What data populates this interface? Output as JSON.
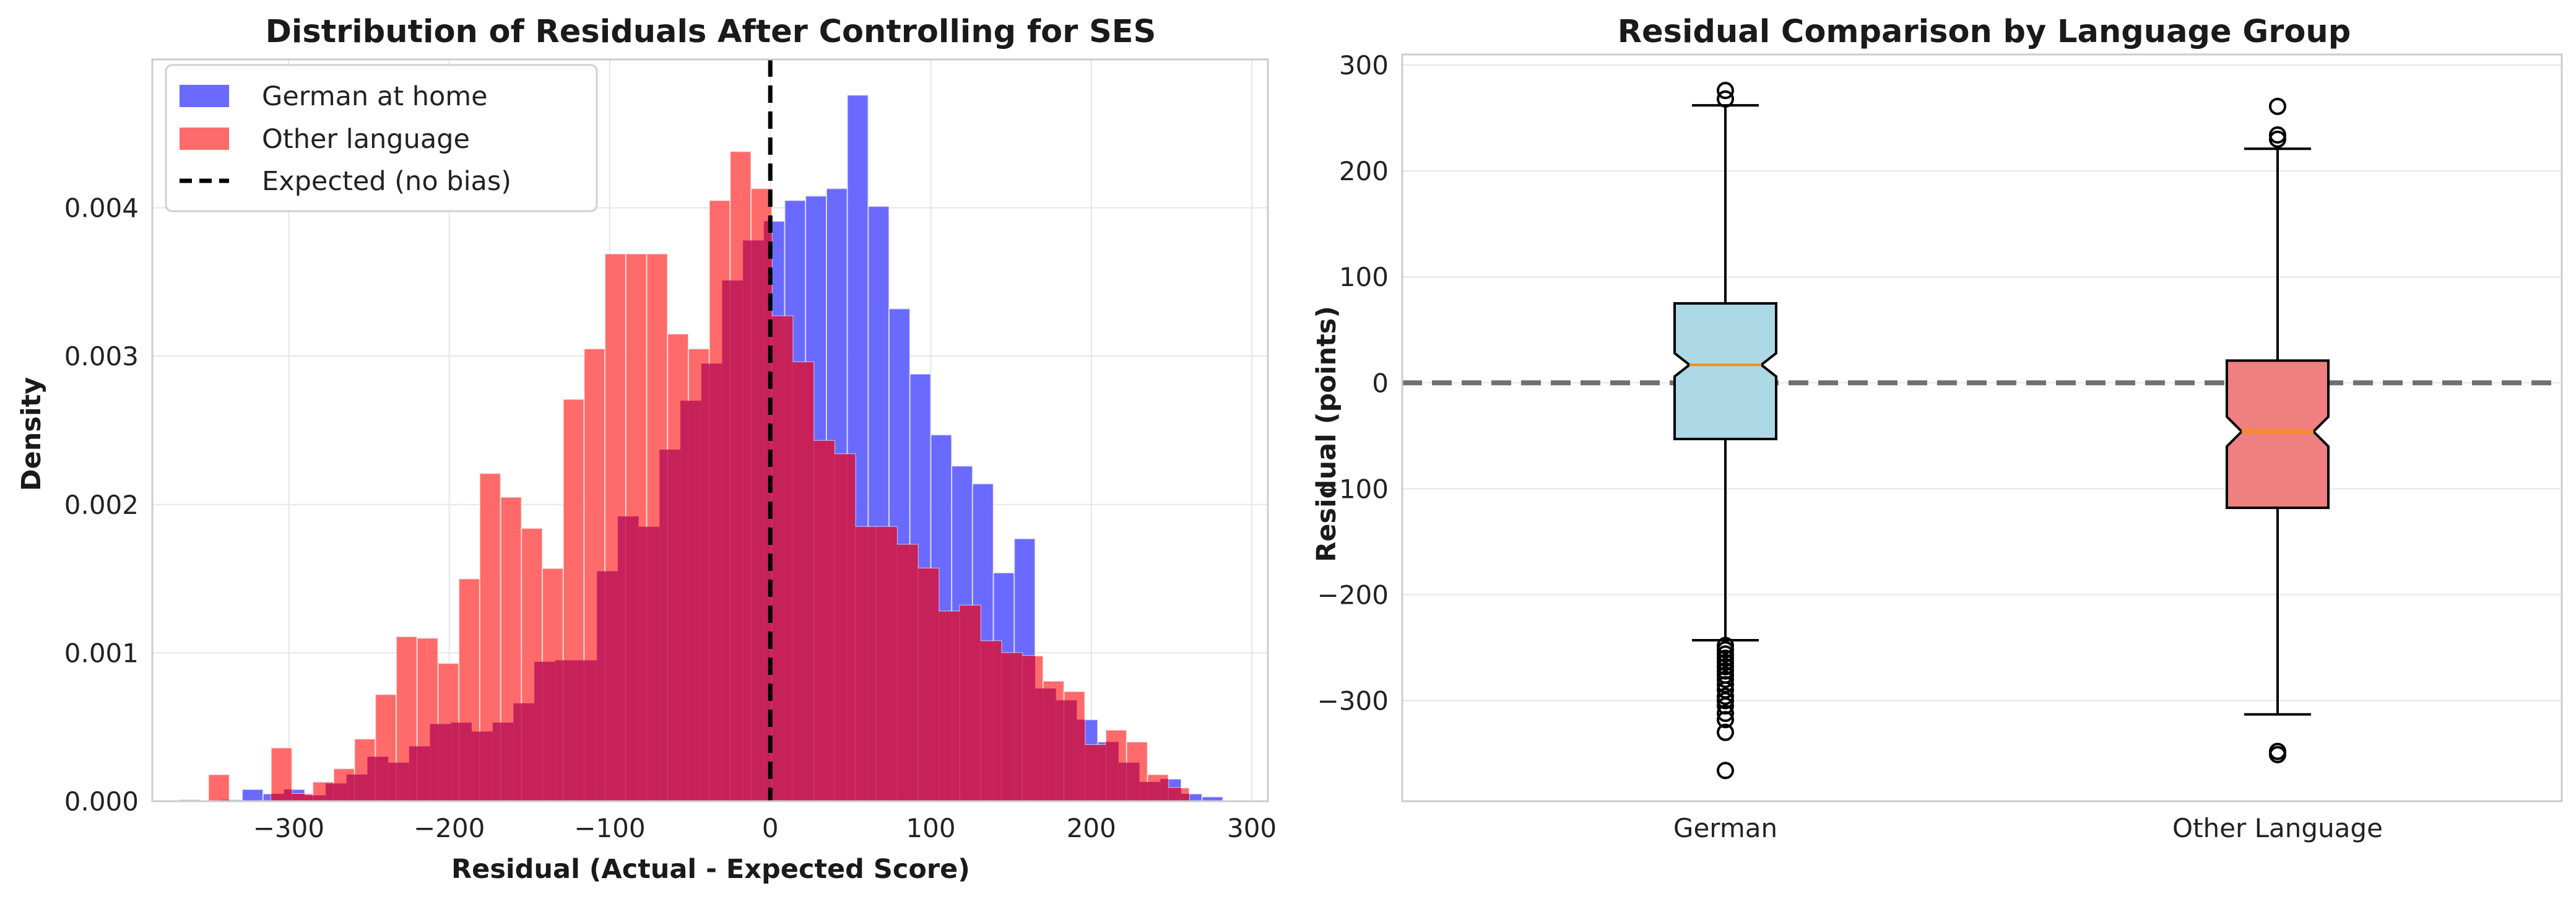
{
  "chart_data": [
    {
      "type": "histogram",
      "title": "Distribution of Residuals After Controlling for SES",
      "xlabel": "Residual (Actual - Expected Score)",
      "ylabel": "Density",
      "xlim": [
        -385,
        310
      ],
      "ylim": [
        0,
        0.005
      ],
      "xticks": [
        -300,
        -200,
        -100,
        0,
        100,
        200,
        300
      ],
      "yticks": [
        0.0,
        0.001,
        0.002,
        0.003,
        0.004
      ],
      "xtick_labels": [
        "−300",
        "−200",
        "−100",
        "0",
        "100",
        "200",
        "300"
      ],
      "ytick_labels": [
        "0.000",
        "0.001",
        "0.002",
        "0.003",
        "0.004"
      ],
      "grid": true,
      "legend": "top-left",
      "series": [
        {
          "name": "German at home",
          "color": "#5a5aff",
          "bins": [
            [
              -368,
              -355,
              1e-05
            ],
            [
              -355,
              -342,
              0.0
            ],
            [
              -342,
              -329,
              1e-05
            ],
            [
              -329,
              -316,
              8e-05
            ],
            [
              -316,
              -303,
              5e-05
            ],
            [
              -303,
              -290,
              8e-05
            ],
            [
              -290,
              -277,
              4e-05
            ],
            [
              -277,
              -264,
              0.00012
            ],
            [
              -264,
              -251,
              0.00018
            ],
            [
              -251,
              -238,
              0.0003
            ],
            [
              -238,
              -225,
              0.00026
            ],
            [
              -225,
              -212,
              0.00037
            ],
            [
              -212,
              -199,
              0.00052
            ],
            [
              -199,
              -186,
              0.00053
            ],
            [
              -186,
              -173,
              0.00047
            ],
            [
              -173,
              -160,
              0.00053
            ],
            [
              -160,
              -147,
              0.00066
            ],
            [
              -147,
              -134,
              0.00094
            ],
            [
              -134,
              -121,
              0.00095
            ],
            [
              -121,
              -108,
              0.00095
            ],
            [
              -108,
              -95,
              0.00155
            ],
            [
              -95,
              -82,
              0.00192
            ],
            [
              -82,
              -69,
              0.00185
            ],
            [
              -69,
              -56,
              0.00237
            ],
            [
              -56,
              -43,
              0.0027
            ],
            [
              -43,
              -30,
              0.00295
            ],
            [
              -30,
              -17,
              0.00351
            ],
            [
              -17,
              -4,
              0.00378
            ],
            [
              -4,
              9,
              0.00391
            ],
            [
              9,
              22,
              0.00405
            ],
            [
              22,
              35,
              0.00408
            ],
            [
              35,
              48,
              0.00413
            ],
            [
              48,
              61,
              0.00476
            ],
            [
              61,
              74,
              0.00401
            ],
            [
              74,
              87,
              0.00332
            ],
            [
              87,
              100,
              0.00288
            ],
            [
              100,
              113,
              0.00247
            ],
            [
              113,
              126,
              0.00226
            ],
            [
              126,
              139,
              0.00214
            ],
            [
              139,
              152,
              0.00154
            ],
            [
              152,
              165,
              0.00177
            ],
            [
              165,
              178,
              0.00076
            ],
            [
              178,
              191,
              0.00068
            ],
            [
              191,
              204,
              0.00055
            ],
            [
              204,
              217,
              0.0004
            ],
            [
              217,
              230,
              0.00026
            ],
            [
              230,
              243,
              0.00013
            ],
            [
              243,
              256,
              0.00015
            ],
            [
              256,
              269,
              5e-05
            ],
            [
              269,
              282,
              3e-05
            ]
          ]
        },
        {
          "name": "Other language",
          "color": "#ff5a5a",
          "bins": [
            [
              -350,
              -337,
              0.00018
            ],
            [
              -337,
              -324,
              0.0
            ],
            [
              -324,
              -311,
              0.0
            ],
            [
              -311,
              -298,
              0.00036
            ],
            [
              -298,
              -285,
              5e-05
            ],
            [
              -285,
              -272,
              0.00013
            ],
            [
              -272,
              -259,
              0.00022
            ],
            [
              -259,
              -246,
              0.00042
            ],
            [
              -246,
              -233,
              0.00072
            ],
            [
              -233,
              -220,
              0.00111
            ],
            [
              -220,
              -207,
              0.0011
            ],
            [
              -207,
              -194,
              0.00093
            ],
            [
              -194,
              -181,
              0.0015
            ],
            [
              -181,
              -168,
              0.00221
            ],
            [
              -168,
              -155,
              0.00205
            ],
            [
              -155,
              -142,
              0.00184
            ],
            [
              -142,
              -129,
              0.00157
            ],
            [
              -129,
              -116,
              0.00271
            ],
            [
              -116,
              -103,
              0.00305
            ],
            [
              -103,
              -90,
              0.00369
            ],
            [
              -90,
              -77,
              0.00369
            ],
            [
              -77,
              -64,
              0.00369
            ],
            [
              -64,
              -51,
              0.00315
            ],
            [
              -51,
              -38,
              0.00305
            ],
            [
              -38,
              -25,
              0.00405
            ],
            [
              -25,
              -12,
              0.00438
            ],
            [
              -12,
              1,
              0.00413
            ],
            [
              1,
              14,
              0.00327
            ],
            [
              14,
              27,
              0.00296
            ],
            [
              27,
              40,
              0.00243
            ],
            [
              40,
              53,
              0.00234
            ],
            [
              53,
              66,
              0.00185
            ],
            [
              66,
              79,
              0.00185
            ],
            [
              79,
              92,
              0.00173
            ],
            [
              92,
              105,
              0.00157
            ],
            [
              105,
              118,
              0.00128
            ],
            [
              118,
              131,
              0.00132
            ],
            [
              131,
              144,
              0.00108
            ],
            [
              144,
              157,
              0.001
            ],
            [
              157,
              170,
              0.00098
            ],
            [
              170,
              183,
              0.00081
            ],
            [
              183,
              196,
              0.00074
            ],
            [
              196,
              209,
              0.00038
            ],
            [
              209,
              222,
              0.00048
            ],
            [
              222,
              235,
              0.0004
            ],
            [
              235,
              248,
              0.00018
            ],
            [
              248,
              261,
              9e-05
            ]
          ]
        }
      ],
      "overlap_color": "#c41f5a",
      "reference_line": {
        "name": "Expected (no bias)",
        "x": 0,
        "color": "#000000"
      }
    },
    {
      "type": "boxplot",
      "title": "Residual Comparison by Language Group",
      "xlabel": "",
      "ylabel": "Residual (points)",
      "ylim": [
        -395,
        310
      ],
      "yticks": [
        -300,
        -200,
        -100,
        0,
        100,
        200,
        300
      ],
      "ytick_labels": [
        "−300",
        "−200",
        "−100",
        "0",
        "100",
        "200",
        "300"
      ],
      "grid": true,
      "reference_line": {
        "y": 0,
        "color": "#707070"
      },
      "groups": [
        {
          "label": "German",
          "color": "#add8e6",
          "median": 17,
          "q1": -53,
          "q3": 75,
          "notch_low": 6,
          "notch_high": 28,
          "whisker_low": -243,
          "whisker_high": 262,
          "outliers": [
            268,
            276,
            -248,
            -252,
            -256,
            -260,
            -264,
            -268,
            -272,
            -276,
            -280,
            -285,
            -290,
            -296,
            -300,
            -305,
            -312,
            -318,
            -330,
            -366
          ]
        },
        {
          "label": "Other Language",
          "color": "#f08080",
          "median": -46,
          "q1": -118,
          "q3": 21,
          "notch_low": -60,
          "notch_high": -32,
          "whisker_low": -313,
          "whisker_high": 221,
          "outliers": [
            230,
            234,
            261,
            -348,
            -351
          ]
        }
      ]
    }
  ]
}
